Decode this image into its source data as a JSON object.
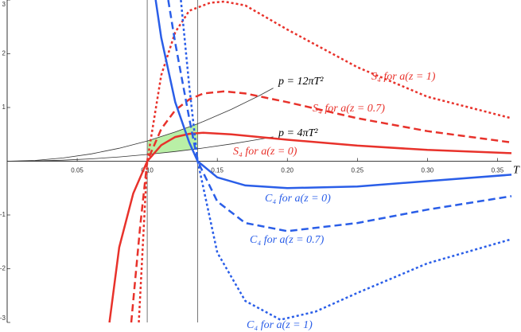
{
  "chart_data": {
    "type": "line",
    "x_label": "T",
    "xlim": [
      0,
      0.36
    ],
    "ylim": [
      -3,
      3
    ],
    "xticks": [
      0.05,
      {
        "value": 0.1,
        "label": "0.10"
      },
      0.15,
      {
        "value": 0.2,
        "label": "0.20"
      },
      0.25,
      {
        "value": 0.3,
        "label": "0.30"
      },
      0.35
    ],
    "yticks": [
      -3,
      -2,
      -1,
      1,
      2,
      3
    ],
    "vlines": [
      0.1,
      0.136
    ],
    "shaded_region": {
      "from": 0.1,
      "to": 0.136,
      "color": "#b9efa6"
    },
    "series": [
      {
        "name": "p = 12πT²",
        "color": "#333333",
        "dash": "thin",
        "x": [
          0,
          0.02,
          0.04,
          0.06,
          0.08,
          0.1,
          0.12,
          0.136,
          0.14,
          0.16,
          0.18,
          0.19
        ],
        "values": [
          0,
          0.015,
          0.06,
          0.136,
          0.241,
          0.377,
          0.543,
          0.697,
          0.739,
          0.965,
          1.221,
          1.361
        ]
      },
      {
        "name": "p = 4πT²",
        "color": "#333333",
        "dash": "thin",
        "x": [
          0,
          0.02,
          0.04,
          0.06,
          0.08,
          0.1,
          0.12,
          0.136,
          0.14,
          0.16,
          0.18,
          0.19
        ],
        "values": [
          0,
          0.005,
          0.02,
          0.045,
          0.08,
          0.126,
          0.181,
          0.232,
          0.246,
          0.322,
          0.407,
          0.454
        ]
      },
      {
        "name": "S₄ for a(z = 0)",
        "color": "#e8322b",
        "dash": "solid",
        "x": [
          0.073,
          0.08,
          0.09,
          0.1,
          0.11,
          0.12,
          0.13,
          0.14,
          0.16,
          0.2,
          0.25,
          0.3,
          0.36
        ],
        "values": [
          -3,
          -1.6,
          -0.6,
          0,
          0.3,
          0.45,
          0.51,
          0.53,
          0.5,
          0.4,
          0.29,
          0.21,
          0.15
        ]
      },
      {
        "name": "S₄ for a(z = 0.7)",
        "color": "#e8322b",
        "dash": "dashed",
        "x": [
          0.0886,
          0.095,
          0.1,
          0.11,
          0.12,
          0.13,
          0.14,
          0.155,
          0.17,
          0.2,
          0.25,
          0.3,
          0.36
        ],
        "values": [
          -3,
          -1.2,
          0,
          0.6,
          0.95,
          1.15,
          1.26,
          1.3,
          1.26,
          1.1,
          0.8,
          0.56,
          0.35
        ]
      },
      {
        "name": "S₄ for a(z = 1)",
        "color": "#e8322b",
        "dash": "dotted",
        "x": [
          0.094,
          0.1,
          0.11,
          0.12,
          0.13,
          0.145,
          0.155,
          0.17,
          0.2,
          0.25,
          0.3,
          0.36
        ],
        "values": [
          -3,
          0,
          1.6,
          2.4,
          2.8,
          2.95,
          2.97,
          2.9,
          2.45,
          1.75,
          1.2,
          0.8
        ]
      },
      {
        "name": "C₄ for a(z = 0)",
        "color": "#2a5ee8",
        "dash": "solid",
        "x": [
          0.106,
          0.11,
          0.12,
          0.13,
          0.136,
          0.15,
          0.17,
          0.2,
          0.25,
          0.3,
          0.36
        ],
        "values": [
          3,
          2.3,
          1.1,
          0.35,
          0,
          -0.3,
          -0.45,
          -0.5,
          -0.47,
          -0.37,
          -0.25
        ]
      },
      {
        "name": "C₄ for a(z = 0.7)",
        "color": "#2a5ee8",
        "dash": "dashed",
        "x": [
          0.115,
          0.12,
          0.13,
          0.136,
          0.15,
          0.17,
          0.2,
          0.25,
          0.3,
          0.36
        ],
        "values": [
          3,
          2.2,
          0.8,
          0,
          -0.75,
          -1.15,
          -1.3,
          -1.15,
          -0.9,
          -0.65
        ]
      },
      {
        "name": "C₄ for a(z = 1)",
        "color": "#2a5ee8",
        "dash": "dotted",
        "x": [
          0.124,
          0.13,
          0.136,
          0.15,
          0.17,
          0.195,
          0.22,
          0.25,
          0.3,
          0.36
        ],
        "values": [
          3,
          1.4,
          0,
          -1.7,
          -2.6,
          -2.95,
          -2.8,
          -2.45,
          -1.9,
          -1.45
        ]
      }
    ]
  }
}
